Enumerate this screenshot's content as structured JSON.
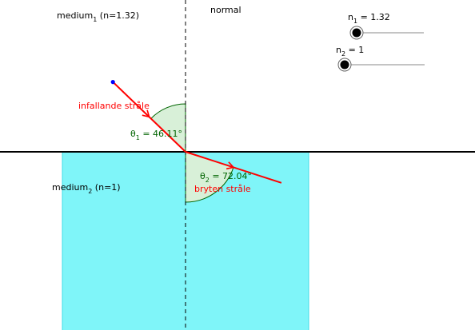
{
  "medium1": {
    "label_base": "medium",
    "label_sub": "1",
    "label_rest": " (n=1.32)"
  },
  "medium2": {
    "label_base": "medium",
    "label_sub": "2",
    "label_rest": " (n=1)",
    "fill_color": "#7ff5f9",
    "edge_color": "#3fdde8"
  },
  "normal_label": "normal",
  "incident_ray": {
    "label": "infallande stråle",
    "color": "#ff0000",
    "angle_deg": 46.11
  },
  "refracted_ray": {
    "label": "bryten stråle",
    "color": "#ff0000",
    "angle_deg": 72.04
  },
  "theta1": {
    "sym": "θ",
    "sub": "1",
    "value_text": " = 46.11°",
    "arc_fill": "#d8f0d8",
    "arc_stroke": "#006400"
  },
  "theta2": {
    "sym": "θ",
    "sub": "2",
    "value_text": " = 72.04°",
    "arc_fill": "#d8f0d8",
    "arc_stroke": "#006400"
  },
  "slider_n1": {
    "sym": "n",
    "sub": "1",
    "value_text": " = 1.32",
    "value": 1.32
  },
  "slider_n2": {
    "sym": "n",
    "sub": "2",
    "value_text": " = 1",
    "value": 1
  },
  "source_point_color": "#0000ff"
}
